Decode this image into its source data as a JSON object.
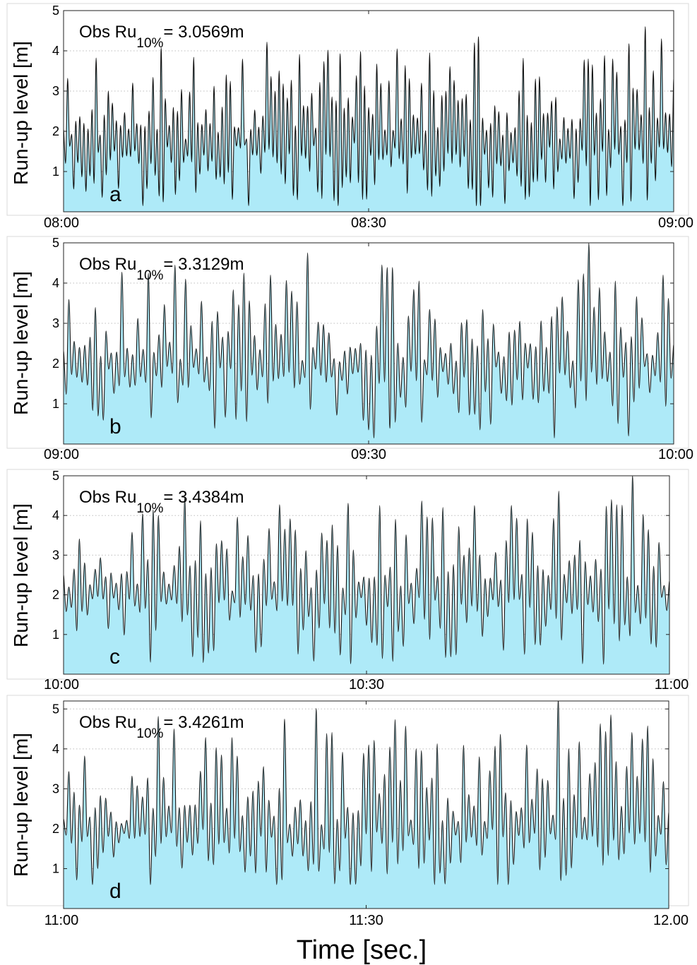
{
  "figure": {
    "xlabel": "Time [sec.]",
    "fill_color": "#aeeaf8",
    "line_color": "#111111",
    "grid_color": "#bdbdbd"
  },
  "chart_data": [
    {
      "type": "area",
      "panel_label": "a",
      "annotation": {
        "prefix": "Obs Ru",
        "subscript": "10%",
        "value": "= 3.0569m"
      },
      "ylabel": "Run-up level [m]",
      "ylim": [
        0,
        5
      ],
      "yticks": [
        1,
        2,
        3,
        4,
        5
      ],
      "xticks": [
        "08:00",
        "08:30",
        "09:00"
      ],
      "grid": "horizontal dotted",
      "x_start_min": 0,
      "x_end_min": 60,
      "y_min": 0.15,
      "y_max": 4.6,
      "mean": 1.75,
      "n_peaks": 150,
      "seed": 11,
      "peaks": [
        {
          "t": 41.0,
          "v": 4.35
        },
        {
          "t": 57.3,
          "v": 4.6
        },
        {
          "t": 58.8,
          "v": 4.3
        },
        {
          "t": 33.0,
          "v": 4.05
        },
        {
          "t": 51.8,
          "v": 3.8
        },
        {
          "t": 54.0,
          "v": 3.8
        }
      ],
      "troughs": [
        {
          "t": 40.5,
          "v": 0.15
        },
        {
          "t": 43.5,
          "v": 0.2
        },
        {
          "t": 53.3,
          "v": 0.4
        }
      ]
    },
    {
      "type": "area",
      "panel_label": "b",
      "annotation": {
        "prefix": "Obs Ru",
        "subscript": "10%",
        "value": "= 3.3129m"
      },
      "ylabel": "Run-up level [m]",
      "ylim": [
        0,
        5
      ],
      "yticks": [
        1,
        2,
        3,
        4,
        5
      ],
      "xticks": [
        "09:00",
        "09:30",
        "10:00"
      ],
      "grid": "horizontal dotted",
      "x_start_min": 0,
      "x_end_min": 60,
      "y_min": 0.15,
      "y_max": 5.0,
      "mean": 1.95,
      "n_peaks": 115,
      "seed": 23,
      "peaks": [
        {
          "t": 51.5,
          "v": 5.0
        },
        {
          "t": 20.5,
          "v": 4.2
        },
        {
          "t": 17.5,
          "v": 4.25
        },
        {
          "t": 59.2,
          "v": 4.2
        },
        {
          "t": 11.8,
          "v": 4.1
        },
        {
          "t": 54.5,
          "v": 4.05
        }
      ],
      "troughs": [
        {
          "t": 48.5,
          "v": 0.15
        },
        {
          "t": 55.5,
          "v": 0.2
        },
        {
          "t": 8.4,
          "v": 0.65
        }
      ]
    },
    {
      "type": "area",
      "panel_label": "c",
      "annotation": {
        "prefix": "Obs Ru",
        "subscript": "10%",
        "value": "= 3.4384m"
      },
      "ylabel": "Run-up level [m]",
      "ylim": [
        0,
        5
      ],
      "yticks": [
        1,
        2,
        3,
        4,
        5
      ],
      "xticks": [
        "10:00",
        "10:30",
        "11:00"
      ],
      "grid": "horizontal dotted",
      "x_start_min": 0,
      "x_end_min": 60,
      "y_min": 0.25,
      "y_max": 5.0,
      "mean": 2.0,
      "n_peaks": 115,
      "seed": 37,
      "peaks": [
        {
          "t": 56.6,
          "v": 5.0
        },
        {
          "t": 11.8,
          "v": 4.45
        },
        {
          "t": 54.3,
          "v": 4.4
        },
        {
          "t": 31.2,
          "v": 4.25
        },
        {
          "t": 7.8,
          "v": 4.05
        },
        {
          "t": 9.4,
          "v": 4.0
        }
      ],
      "troughs": [
        {
          "t": 8.7,
          "v": 0.3
        },
        {
          "t": 53.5,
          "v": 0.25
        },
        {
          "t": 43.8,
          "v": 0.6
        }
      ]
    },
    {
      "type": "area",
      "panel_label": "d",
      "annotation": {
        "prefix": "Obs Ru",
        "subscript": "10%",
        "value": "= 3.4261m"
      },
      "ylabel": "Run-up level [m]",
      "ylim": [
        0,
        5.2
      ],
      "yticks": [
        1,
        2,
        3,
        4,
        5
      ],
      "xticks": [
        "11:00",
        "11:30",
        "12.00"
      ],
      "grid": "horizontal dotted",
      "x_start_min": 0,
      "x_end_min": 60,
      "y_min": 0.6,
      "y_max": 5.25,
      "mean": 2.0,
      "n_peaks": 115,
      "seed": 53,
      "peaks": [
        {
          "t": 48.8,
          "v": 5.25
        },
        {
          "t": 10.8,
          "v": 4.5
        },
        {
          "t": 57.3,
          "v": 4.25
        },
        {
          "t": 30.5,
          "v": 4.1
        },
        {
          "t": 46.0,
          "v": 4.1
        },
        {
          "t": 32.2,
          "v": 4.05
        }
      ],
      "troughs": [
        {
          "t": 8.5,
          "v": 0.6
        },
        {
          "t": 44.2,
          "v": 0.6
        },
        {
          "t": 49.4,
          "v": 0.7
        }
      ]
    }
  ]
}
